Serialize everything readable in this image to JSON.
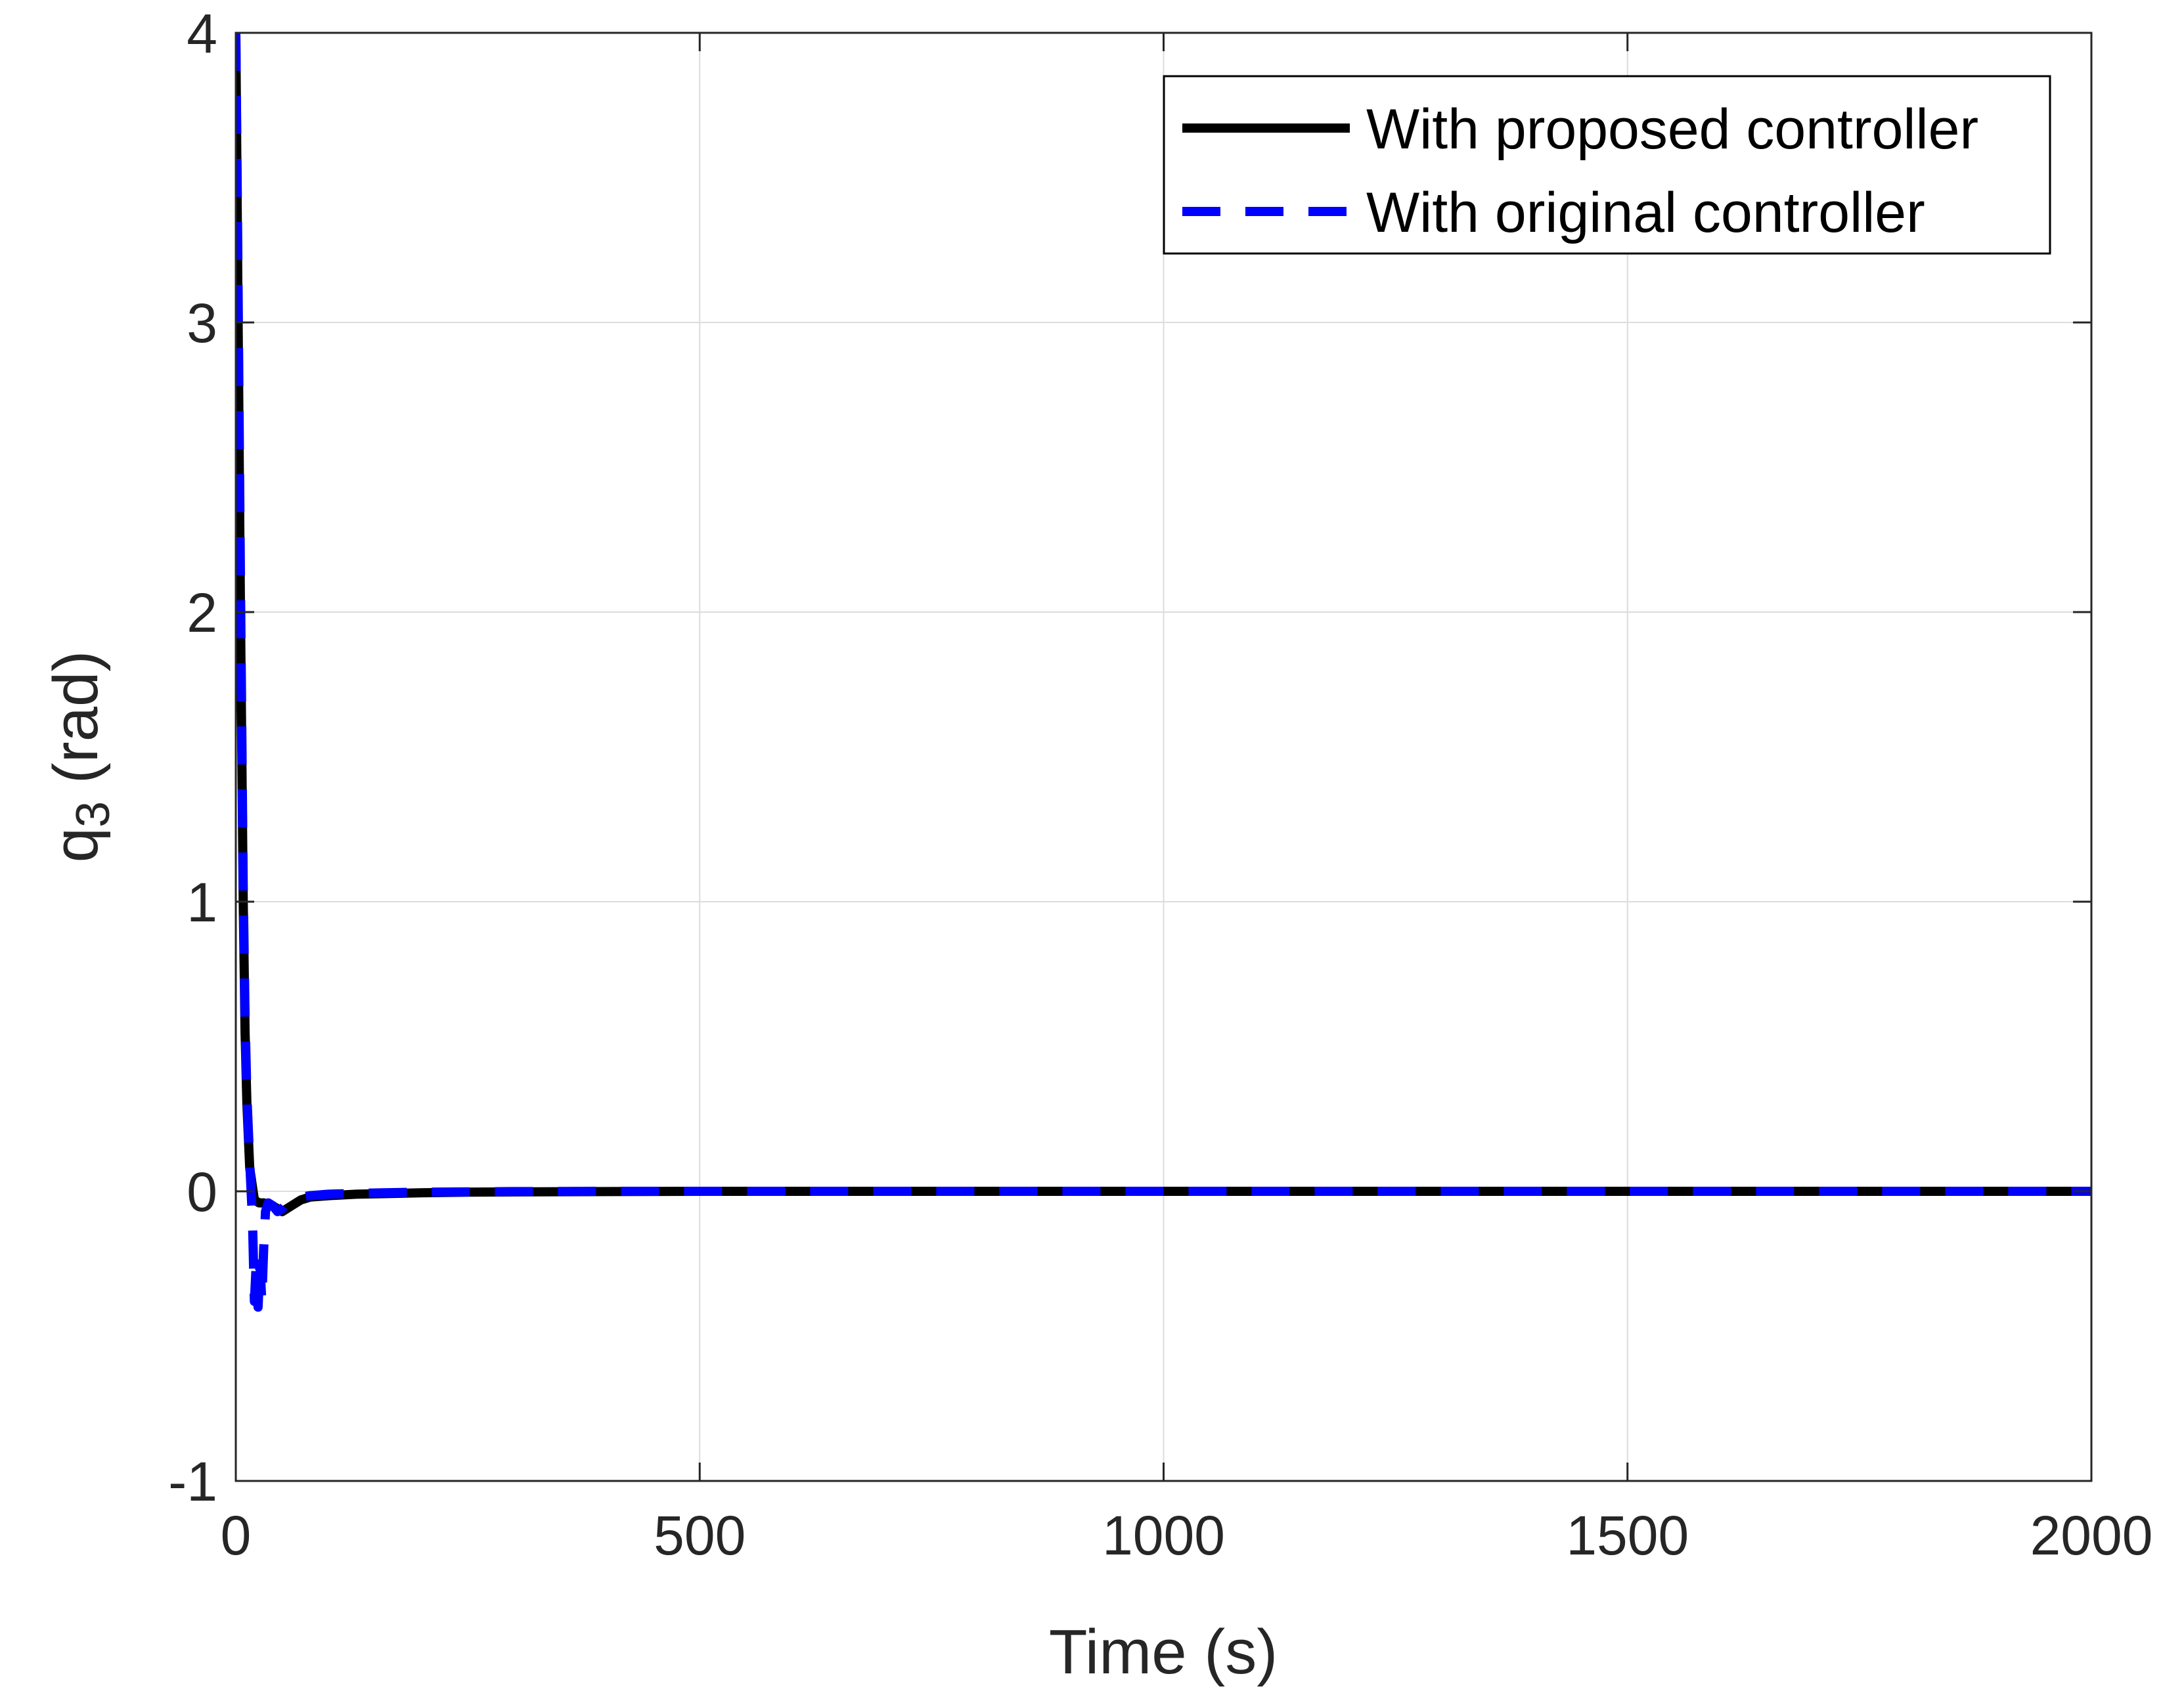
{
  "chart_data": {
    "type": "line",
    "xlabel": "Time (s)",
    "ylabel": {
      "prefix": "q",
      "subscript": "3",
      "suffix": " (rad)"
    },
    "xlim": [
      0,
      2000
    ],
    "ylim": [
      -1,
      4
    ],
    "xticks": [
      0,
      500,
      1000,
      1500,
      2000
    ],
    "yticks": [
      -1,
      0,
      1,
      2,
      3,
      4
    ],
    "grid": true,
    "legend_position": "top-right",
    "series": [
      {
        "name": "With proposed controller",
        "color": "#000000",
        "style": "solid",
        "x": [
          0,
          2,
          5,
          8,
          10,
          12,
          15,
          20,
          25,
          30,
          35,
          40,
          45,
          50,
          60,
          70,
          80,
          100,
          130,
          160,
          200,
          250,
          300,
          400,
          500,
          700,
          1000,
          1500,
          2000
        ],
        "y": [
          4.0,
          3.2,
          2.0,
          1.0,
          0.55,
          0.3,
          0.08,
          -0.03,
          -0.04,
          -0.04,
          -0.045,
          -0.05,
          -0.06,
          -0.07,
          -0.05,
          -0.03,
          -0.02,
          -0.015,
          -0.01,
          -0.008,
          -0.005,
          -0.003,
          -0.002,
          -0.001,
          0.0,
          0.0,
          0.0,
          0.0,
          0.0
        ]
      },
      {
        "name": "With original controller",
        "color": "#0000ff",
        "style": "dashed",
        "x": [
          0,
          2,
          5,
          8,
          10,
          12,
          15,
          18,
          20,
          22,
          24,
          26,
          28,
          30,
          32,
          35,
          40,
          45,
          50,
          55,
          60,
          70,
          80,
          100,
          130,
          160,
          200,
          250,
          300,
          400,
          500,
          700,
          1000,
          1500,
          2000
        ],
        "y": [
          4.0,
          3.3,
          2.1,
          1.05,
          0.6,
          0.33,
          0.1,
          -0.1,
          -0.38,
          -0.25,
          -0.4,
          -0.25,
          -0.38,
          -0.2,
          -0.07,
          -0.04,
          -0.05,
          -0.07,
          -0.06,
          -0.04,
          -0.03,
          -0.02,
          -0.015,
          -0.01,
          -0.007,
          -0.005,
          -0.003,
          -0.002,
          -0.001,
          0.0,
          0.0,
          0.0,
          0.0,
          0.0,
          0.0
        ]
      }
    ]
  }
}
